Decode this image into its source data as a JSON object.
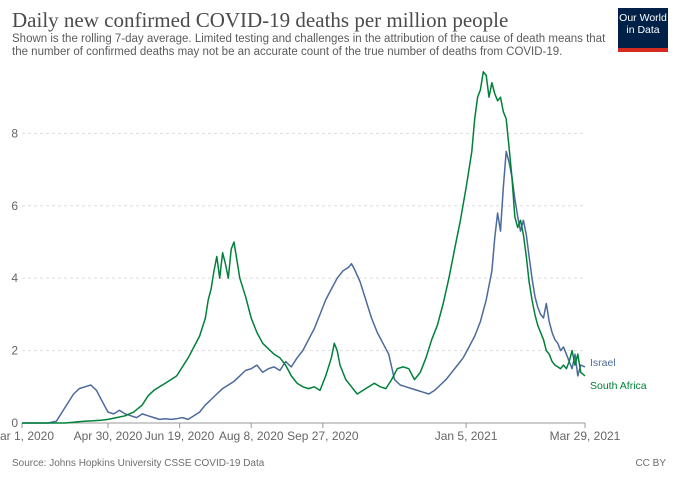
{
  "header": {
    "title": "Daily new confirmed COVID-19 deaths per million people",
    "subtitle": "Shown is the rolling 7-day average. Limited testing and challenges in the attribution of the cause of death means that the number of confirmed deaths may not be an accurate count of the true number of deaths from COVID-19.",
    "logo_line1": "Our World",
    "logo_line2": "in Data"
  },
  "footer": {
    "source": "Source: Johns Hopkins University CSSE COVID-19 Data",
    "license": "CC BY"
  },
  "colors": {
    "israel": "#4c6a9c",
    "south_africa": "#00813a",
    "grid": "#dddddd",
    "axis": "#999999"
  },
  "chart_data": {
    "type": "line",
    "title": "Daily new confirmed COVID-19 deaths per million people",
    "xlabel": "",
    "ylabel": "",
    "x_unit": "days since Mar 1, 2020",
    "xlim": [
      0,
      393
    ],
    "ylim": [
      0,
      9.75
    ],
    "grid": true,
    "legend": "end-of-line labels",
    "yticks": [
      0,
      2,
      4,
      6,
      8
    ],
    "xticks": [
      {
        "day": 0,
        "label": "Mar 1, 2020"
      },
      {
        "day": 60,
        "label": "Apr 30, 2020"
      },
      {
        "day": 110,
        "label": "Jun 19, 2020"
      },
      {
        "day": 160,
        "label": "Aug 8, 2020"
      },
      {
        "day": 210,
        "label": "Sep 27, 2020"
      },
      {
        "day": 310,
        "label": "Jan 5, 2021"
      },
      {
        "day": 393,
        "label": "Mar 29, 2021"
      }
    ],
    "series": [
      {
        "name": "Israel",
        "color": "#4c6a9c",
        "points": [
          [
            0,
            0
          ],
          [
            18,
            0
          ],
          [
            24,
            0.05
          ],
          [
            28,
            0.3
          ],
          [
            32,
            0.55
          ],
          [
            36,
            0.8
          ],
          [
            40,
            0.95
          ],
          [
            44,
            1.0
          ],
          [
            48,
            1.05
          ],
          [
            52,
            0.9
          ],
          [
            56,
            0.6
          ],
          [
            60,
            0.3
          ],
          [
            64,
            0.25
          ],
          [
            68,
            0.35
          ],
          [
            72,
            0.25
          ],
          [
            76,
            0.2
          ],
          [
            80,
            0.15
          ],
          [
            84,
            0.25
          ],
          [
            88,
            0.2
          ],
          [
            92,
            0.15
          ],
          [
            96,
            0.1
          ],
          [
            100,
            0.12
          ],
          [
            104,
            0.1
          ],
          [
            108,
            0.12
          ],
          [
            112,
            0.15
          ],
          [
            116,
            0.1
          ],
          [
            120,
            0.2
          ],
          [
            124,
            0.3
          ],
          [
            128,
            0.5
          ],
          [
            132,
            0.65
          ],
          [
            136,
            0.8
          ],
          [
            140,
            0.95
          ],
          [
            144,
            1.05
          ],
          [
            148,
            1.15
          ],
          [
            152,
            1.3
          ],
          [
            156,
            1.45
          ],
          [
            160,
            1.5
          ],
          [
            164,
            1.6
          ],
          [
            168,
            1.4
          ],
          [
            172,
            1.5
          ],
          [
            176,
            1.55
          ],
          [
            180,
            1.45
          ],
          [
            184,
            1.7
          ],
          [
            188,
            1.55
          ],
          [
            192,
            1.8
          ],
          [
            196,
            2.0
          ],
          [
            200,
            2.3
          ],
          [
            204,
            2.6
          ],
          [
            208,
            3.0
          ],
          [
            212,
            3.4
          ],
          [
            216,
            3.7
          ],
          [
            220,
            4.0
          ],
          [
            224,
            4.2
          ],
          [
            228,
            4.3
          ],
          [
            230,
            4.4
          ],
          [
            232,
            4.25
          ],
          [
            236,
            3.9
          ],
          [
            240,
            3.4
          ],
          [
            244,
            2.9
          ],
          [
            248,
            2.5
          ],
          [
            252,
            2.2
          ],
          [
            256,
            1.9
          ],
          [
            260,
            1.2
          ],
          [
            264,
            1.05
          ],
          [
            268,
            1.0
          ],
          [
            272,
            0.95
          ],
          [
            276,
            0.9
          ],
          [
            280,
            0.85
          ],
          [
            284,
            0.8
          ],
          [
            288,
            0.9
          ],
          [
            292,
            1.05
          ],
          [
            296,
            1.2
          ],
          [
            300,
            1.4
          ],
          [
            304,
            1.6
          ],
          [
            308,
            1.8
          ],
          [
            312,
            2.1
          ],
          [
            316,
            2.4
          ],
          [
            320,
            2.8
          ],
          [
            324,
            3.4
          ],
          [
            328,
            4.2
          ],
          [
            330,
            5.1
          ],
          [
            332,
            5.8
          ],
          [
            334,
            5.3
          ],
          [
            336,
            6.5
          ],
          [
            338,
            7.5
          ],
          [
            340,
            7.2
          ],
          [
            342,
            6.8
          ],
          [
            344,
            6.2
          ],
          [
            346,
            5.7
          ],
          [
            348,
            5.3
          ],
          [
            350,
            5.6
          ],
          [
            352,
            5.2
          ],
          [
            354,
            4.6
          ],
          [
            356,
            4.0
          ],
          [
            358,
            3.5
          ],
          [
            360,
            3.2
          ],
          [
            362,
            3.0
          ],
          [
            364,
            2.9
          ],
          [
            366,
            3.3
          ],
          [
            368,
            2.8
          ],
          [
            370,
            2.5
          ],
          [
            372,
            2.3
          ],
          [
            374,
            2.2
          ],
          [
            376,
            2.0
          ],
          [
            378,
            2.1
          ],
          [
            380,
            1.9
          ],
          [
            382,
            1.7
          ],
          [
            384,
            1.5
          ],
          [
            386,
            1.9
          ],
          [
            388,
            1.3
          ],
          [
            390,
            1.6
          ],
          [
            393,
            1.55
          ]
        ]
      },
      {
        "name": "South Africa",
        "color": "#00813a",
        "points": [
          [
            0,
            0
          ],
          [
            30,
            0
          ],
          [
            36,
            0.02
          ],
          [
            40,
            0.04
          ],
          [
            44,
            0.05
          ],
          [
            50,
            0.06
          ],
          [
            56,
            0.08
          ],
          [
            60,
            0.1
          ],
          [
            66,
            0.15
          ],
          [
            72,
            0.2
          ],
          [
            78,
            0.3
          ],
          [
            84,
            0.5
          ],
          [
            88,
            0.75
          ],
          [
            92,
            0.9
          ],
          [
            96,
            1.0
          ],
          [
            100,
            1.1
          ],
          [
            104,
            1.2
          ],
          [
            108,
            1.3
          ],
          [
            112,
            1.55
          ],
          [
            116,
            1.8
          ],
          [
            120,
            2.1
          ],
          [
            124,
            2.4
          ],
          [
            128,
            2.9
          ],
          [
            130,
            3.4
          ],
          [
            132,
            3.7
          ],
          [
            134,
            4.2
          ],
          [
            136,
            4.6
          ],
          [
            138,
            4.0
          ],
          [
            140,
            4.7
          ],
          [
            142,
            4.4
          ],
          [
            144,
            4.0
          ],
          [
            146,
            4.8
          ],
          [
            148,
            5.0
          ],
          [
            150,
            4.5
          ],
          [
            152,
            4.0
          ],
          [
            156,
            3.5
          ],
          [
            160,
            2.9
          ],
          [
            164,
            2.5
          ],
          [
            168,
            2.2
          ],
          [
            172,
            2.05
          ],
          [
            176,
            1.9
          ],
          [
            180,
            1.8
          ],
          [
            184,
            1.6
          ],
          [
            188,
            1.3
          ],
          [
            192,
            1.1
          ],
          [
            196,
            1.0
          ],
          [
            200,
            0.95
          ],
          [
            204,
            1.0
          ],
          [
            208,
            0.9
          ],
          [
            212,
            1.3
          ],
          [
            216,
            1.8
          ],
          [
            218,
            2.2
          ],
          [
            220,
            2.0
          ],
          [
            222,
            1.6
          ],
          [
            226,
            1.2
          ],
          [
            230,
            1.0
          ],
          [
            234,
            0.8
          ],
          [
            238,
            0.9
          ],
          [
            242,
            1.0
          ],
          [
            246,
            1.1
          ],
          [
            250,
            1.0
          ],
          [
            254,
            0.95
          ],
          [
            258,
            1.2
          ],
          [
            262,
            1.5
          ],
          [
            266,
            1.55
          ],
          [
            270,
            1.5
          ],
          [
            274,
            1.2
          ],
          [
            278,
            1.4
          ],
          [
            282,
            1.8
          ],
          [
            286,
            2.3
          ],
          [
            290,
            2.7
          ],
          [
            294,
            3.3
          ],
          [
            298,
            4.0
          ],
          [
            302,
            4.8
          ],
          [
            306,
            5.6
          ],
          [
            310,
            6.5
          ],
          [
            314,
            7.5
          ],
          [
            316,
            8.4
          ],
          [
            318,
            9.0
          ],
          [
            320,
            9.2
          ],
          [
            322,
            9.7
          ],
          [
            324,
            9.6
          ],
          [
            326,
            9.0
          ],
          [
            328,
            9.4
          ],
          [
            330,
            9.1
          ],
          [
            332,
            8.9
          ],
          [
            334,
            9.0
          ],
          [
            336,
            8.6
          ],
          [
            338,
            8.4
          ],
          [
            340,
            7.6
          ],
          [
            342,
            6.8
          ],
          [
            344,
            5.7
          ],
          [
            346,
            5.4
          ],
          [
            348,
            5.6
          ],
          [
            350,
            5.2
          ],
          [
            352,
            4.6
          ],
          [
            354,
            3.9
          ],
          [
            356,
            3.4
          ],
          [
            358,
            3.0
          ],
          [
            360,
            2.7
          ],
          [
            362,
            2.5
          ],
          [
            364,
            2.3
          ],
          [
            366,
            2.0
          ],
          [
            368,
            1.9
          ],
          [
            370,
            1.7
          ],
          [
            372,
            1.6
          ],
          [
            374,
            1.55
          ],
          [
            376,
            1.5
          ],
          [
            378,
            1.6
          ],
          [
            380,
            1.5
          ],
          [
            382,
            1.7
          ],
          [
            384,
            2.0
          ],
          [
            386,
            1.6
          ],
          [
            388,
            1.9
          ],
          [
            390,
            1.4
          ],
          [
            393,
            1.3
          ]
        ]
      }
    ]
  }
}
